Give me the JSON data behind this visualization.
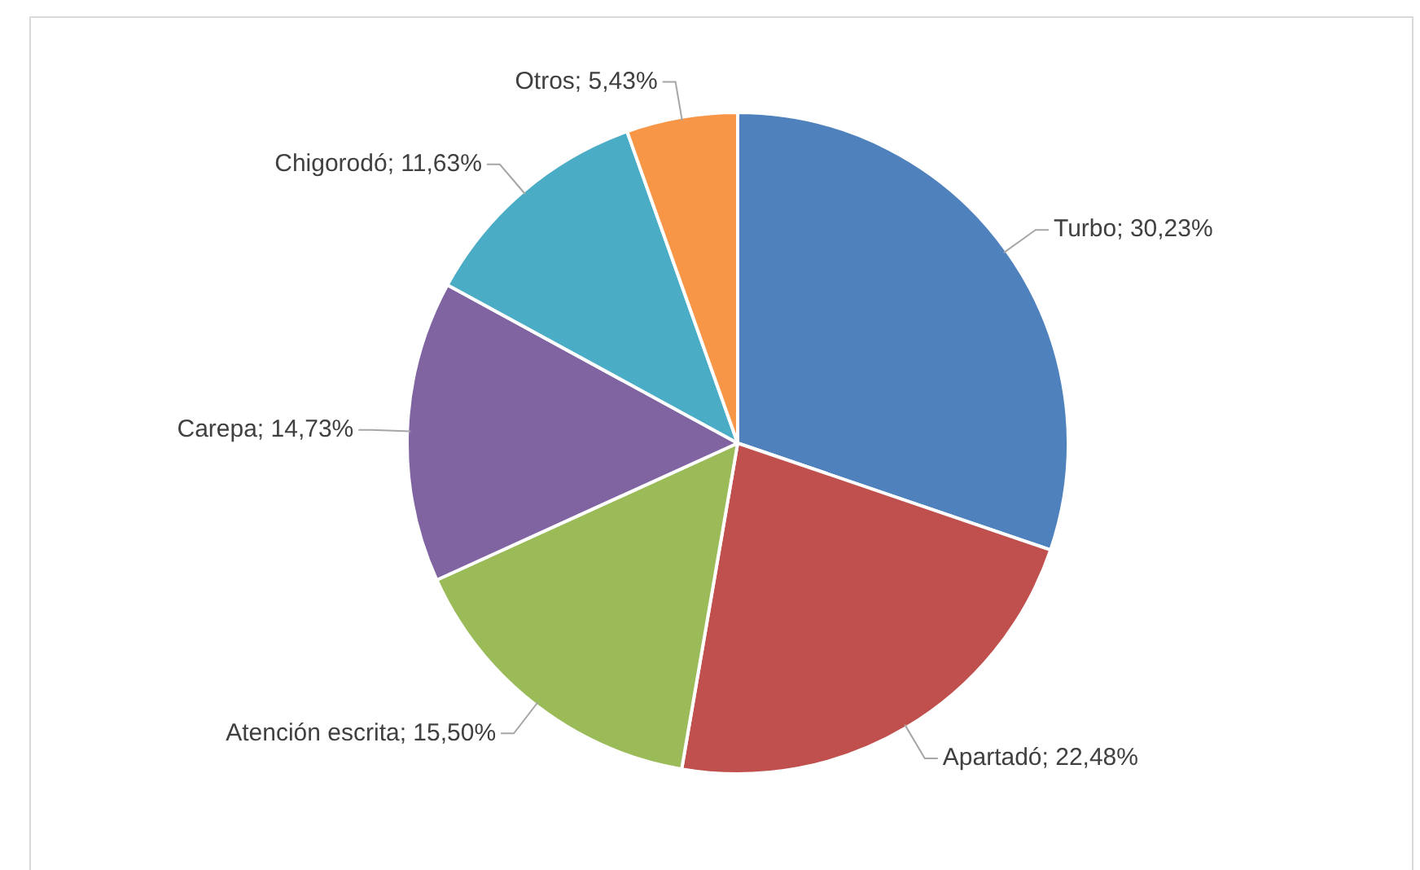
{
  "chart_data": {
    "type": "pie",
    "categories": [
      "Turbo",
      "Apartadó",
      "Atención escrita",
      "Carepa",
      "Chigorodó",
      "Otros"
    ],
    "values": [
      30.23,
      22.48,
      15.5,
      14.73,
      11.63,
      5.43
    ],
    "colors": [
      "#4f81bd",
      "#c0504d",
      "#9bbb59",
      "#8064a2",
      "#4bacc6",
      "#f79646"
    ],
    "value_labels": [
      "30,23%",
      "22,48%",
      "15,50%",
      "14,73%",
      "11,63%",
      "5,43%"
    ],
    "legend": false
  }
}
